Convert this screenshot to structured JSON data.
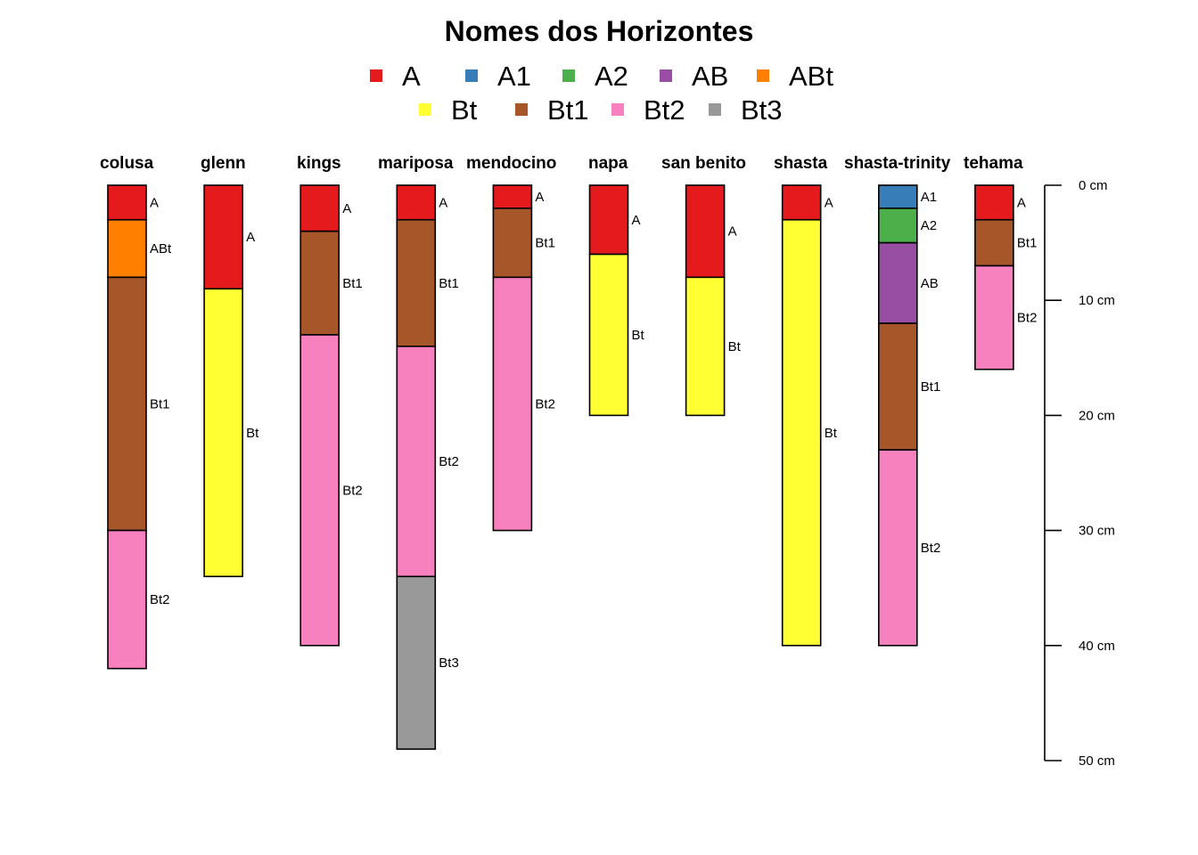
{
  "chart_data": {
    "type": "soil-profile",
    "title": "Nomes dos Horizontes",
    "legend": [
      {
        "name": "A",
        "color": "#E41A1C"
      },
      {
        "name": "A1",
        "color": "#377EB8"
      },
      {
        "name": "A2",
        "color": "#4DAF4A"
      },
      {
        "name": "AB",
        "color": "#984EA3"
      },
      {
        "name": "ABt",
        "color": "#FF7F00"
      },
      {
        "name": "Bt",
        "color": "#FFFF33"
      },
      {
        "name": "Bt1",
        "color": "#A65628"
      },
      {
        "name": "Bt2",
        "color": "#F781BF"
      },
      {
        "name": "Bt3",
        "color": "#999999"
      }
    ],
    "depth_axis": {
      "unit": "cm",
      "ticks": [
        0,
        10,
        20,
        30,
        40,
        50
      ],
      "tick_labels": [
        "0 cm",
        "10 cm",
        "20 cm",
        "30 cm",
        "40 cm",
        "50 cm"
      ],
      "range": [
        0,
        50
      ]
    },
    "profiles": [
      {
        "name": "colusa",
        "horizons": [
          {
            "name": "A",
            "top": 0,
            "bottom": 3
          },
          {
            "name": "ABt",
            "top": 3,
            "bottom": 8
          },
          {
            "name": "Bt1",
            "top": 8,
            "bottom": 30
          },
          {
            "name": "Bt2",
            "top": 30,
            "bottom": 42
          }
        ]
      },
      {
        "name": "glenn",
        "horizons": [
          {
            "name": "A",
            "top": 0,
            "bottom": 9
          },
          {
            "name": "Bt",
            "top": 9,
            "bottom": 34
          }
        ]
      },
      {
        "name": "kings",
        "horizons": [
          {
            "name": "A",
            "top": 0,
            "bottom": 4
          },
          {
            "name": "Bt1",
            "top": 4,
            "bottom": 13
          },
          {
            "name": "Bt2",
            "top": 13,
            "bottom": 40
          }
        ]
      },
      {
        "name": "mariposa",
        "horizons": [
          {
            "name": "A",
            "top": 0,
            "bottom": 3
          },
          {
            "name": "Bt1",
            "top": 3,
            "bottom": 14
          },
          {
            "name": "Bt2",
            "top": 14,
            "bottom": 34
          },
          {
            "name": "Bt3",
            "top": 34,
            "bottom": 49
          }
        ]
      },
      {
        "name": "mendocino",
        "horizons": [
          {
            "name": "A",
            "top": 0,
            "bottom": 2
          },
          {
            "name": "Bt1",
            "top": 2,
            "bottom": 8
          },
          {
            "name": "Bt2",
            "top": 8,
            "bottom": 30
          }
        ]
      },
      {
        "name": "napa",
        "horizons": [
          {
            "name": "A",
            "top": 0,
            "bottom": 6
          },
          {
            "name": "Bt",
            "top": 6,
            "bottom": 20
          }
        ]
      },
      {
        "name": "san benito",
        "horizons": [
          {
            "name": "A",
            "top": 0,
            "bottom": 8
          },
          {
            "name": "Bt",
            "top": 8,
            "bottom": 20
          }
        ]
      },
      {
        "name": "shasta",
        "horizons": [
          {
            "name": "A",
            "top": 0,
            "bottom": 3
          },
          {
            "name": "Bt",
            "top": 3,
            "bottom": 40
          }
        ]
      },
      {
        "name": "shasta-trinity",
        "horizons": [
          {
            "name": "A1",
            "top": 0,
            "bottom": 2
          },
          {
            "name": "A2",
            "top": 2,
            "bottom": 5
          },
          {
            "name": "AB",
            "top": 5,
            "bottom": 12
          },
          {
            "name": "Bt1",
            "top": 12,
            "bottom": 23
          },
          {
            "name": "Bt2",
            "top": 23,
            "bottom": 40
          }
        ]
      },
      {
        "name": "tehama",
        "horizons": [
          {
            "name": "A",
            "top": 0,
            "bottom": 3
          },
          {
            "name": "Bt1",
            "top": 3,
            "bottom": 7
          },
          {
            "name": "Bt2",
            "top": 7,
            "bottom": 16
          }
        ]
      }
    ]
  }
}
